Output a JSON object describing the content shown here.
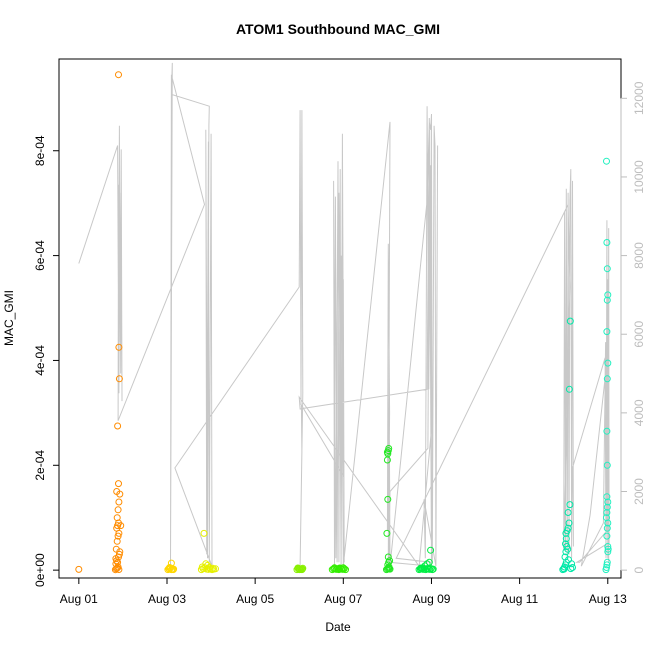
{
  "chart_data": {
    "type": "scatter",
    "title": "ATOM1 Southbound MAC_GMI",
    "xlabel": "Date",
    "ylabel": "MAC_GMI",
    "x_ticks": [
      "Aug 01",
      "Aug 03",
      "Aug 05",
      "Aug 07",
      "Aug 09",
      "Aug 11",
      "Aug 13"
    ],
    "x_tick_days": [
      1,
      3,
      5,
      7,
      9,
      11,
      13
    ],
    "xlim_days": [
      0.55,
      13.3
    ],
    "y_left": {
      "ticks": [
        "0e+00",
        "2e-04",
        "4e-04",
        "6e-04",
        "8e-04"
      ],
      "tick_values": [
        0,
        0.0002,
        0.0004,
        0.0006,
        0.0008
      ],
      "lim": [
        -1.5e-05,
        0.000975
      ]
    },
    "y_right": {
      "ticks": [
        "0",
        "2000",
        "4000",
        "6000",
        "8000",
        "10000",
        "12000"
      ],
      "tick_values": [
        0,
        2000,
        4000,
        6000,
        8000,
        10000,
        12000
      ],
      "lim": [
        -200,
        13000
      ],
      "color": "#bdbdbd"
    },
    "grid": false,
    "legend": "none",
    "series": [
      {
        "color": "#FF8C00",
        "points": [
          [
            1.0,
            1.5e-06
          ],
          [
            1.83,
            8e-07
          ],
          [
            1.85,
            2.5e-06
          ],
          [
            1.87,
            4e-06
          ],
          [
            1.89,
            6e-06
          ],
          [
            1.91,
            1.2e-06
          ],
          [
            1.84,
            1.2e-05
          ],
          [
            1.86,
            1.8e-05
          ],
          [
            1.88,
            1.5e-05
          ],
          [
            1.9,
            2.5e-05
          ],
          [
            1.92,
            3e-05
          ],
          [
            1.85,
            4e-05
          ],
          [
            1.87,
            5.5e-05
          ],
          [
            1.89,
            6.5e-05
          ],
          [
            1.91,
            7e-05
          ],
          [
            1.86,
            8e-05
          ],
          [
            1.88,
            8.5e-05
          ],
          [
            1.9,
            9e-05
          ],
          [
            1.87,
            0.0001
          ],
          [
            1.89,
            0.000115
          ],
          [
            1.91,
            0.00013
          ],
          [
            1.86,
            0.00015
          ],
          [
            1.93,
            0.000145
          ],
          [
            1.9,
            0.000165
          ],
          [
            1.88,
            0.000275
          ],
          [
            1.92,
            0.000365
          ],
          [
            1.91,
            0.000425
          ],
          [
            1.9,
            0.000945
          ],
          [
            1.95,
            8.5e-05
          ],
          [
            1.93,
            3.5e-05
          ],
          [
            1.84,
            2.2e-05
          ]
        ]
      },
      {
        "color": "#FFD700",
        "points": [
          [
            3.02,
            1e-06
          ],
          [
            3.05,
            2.5e-06
          ],
          [
            3.08,
            4e-06
          ],
          [
            3.1,
            1e-06
          ],
          [
            3.12,
            1.5e-06
          ],
          [
            3.15,
            2e-06
          ],
          [
            3.06,
            5e-06
          ],
          [
            3.1,
            1.35e-05
          ],
          [
            3.04,
            3e-06
          ],
          [
            3.14,
            1e-06
          ]
        ]
      },
      {
        "color": "#E6F000",
        "points": [
          [
            3.78,
            1e-06
          ],
          [
            3.82,
            3e-06
          ],
          [
            3.86,
            4.5e-06
          ],
          [
            3.9,
            2e-06
          ],
          [
            3.94,
            1.5e-06
          ],
          [
            3.98,
            3e-06
          ],
          [
            4.02,
            1e-06
          ],
          [
            4.06,
            2e-06
          ],
          [
            4.1,
            2.5e-06
          ],
          [
            3.8,
            6e-06
          ],
          [
            3.88,
            1.2e-05
          ],
          [
            3.84,
            7e-05
          ],
          [
            4.04,
            3.5e-06
          ],
          [
            3.92,
            9e-06
          ],
          [
            3.96,
            5e-06
          ]
        ]
      },
      {
        "color": "#88F000",
        "points": [
          [
            5.95,
            1e-06
          ],
          [
            5.98,
            2.5e-06
          ],
          [
            6.0,
            3e-06
          ],
          [
            6.02,
            1.5e-06
          ],
          [
            6.04,
            2e-06
          ],
          [
            6.06,
            1e-06
          ],
          [
            6.08,
            3.5e-06
          ],
          [
            5.97,
            4e-06
          ],
          [
            6.01,
            1e-06
          ],
          [
            6.07,
            2e-06
          ]
        ]
      },
      {
        "color": "#33EE00",
        "points": [
          [
            6.75,
            1e-06
          ],
          [
            6.78,
            2.5e-06
          ],
          [
            6.81,
            3e-06
          ],
          [
            6.84,
            1.5e-06
          ],
          [
            6.87,
            2e-06
          ],
          [
            6.9,
            1e-06
          ],
          [
            6.93,
            3e-06
          ],
          [
            6.96,
            2e-06
          ],
          [
            6.99,
            1.5e-06
          ],
          [
            7.02,
            3e-06
          ],
          [
            7.05,
            1e-06
          ],
          [
            6.8,
            4.5e-06
          ],
          [
            6.92,
            4e-06
          ],
          [
            7.0,
            4.5e-06
          ],
          [
            6.88,
            3e-06
          ]
        ]
      },
      {
        "color": "#22E822",
        "points": [
          [
            7.98,
            1e-06
          ],
          [
            8.0,
            2.5e-06
          ],
          [
            8.02,
            4e-06
          ],
          [
            8.04,
            6e-06
          ],
          [
            8.01,
            1e-05
          ],
          [
            8.03,
            1.5e-05
          ],
          [
            8.05,
            1.8e-05
          ],
          [
            8.02,
            2.5e-05
          ],
          [
            7.99,
            7e-05
          ],
          [
            8.01,
            0.000135
          ],
          [
            8.0,
            0.00021
          ],
          [
            8.01,
            0.000222
          ],
          [
            8.02,
            0.000228
          ],
          [
            8.03,
            0.000232
          ],
          [
            8.0,
            0.000225
          ],
          [
            8.04,
            3e-06
          ],
          [
            8.06,
            2e-06
          ]
        ]
      },
      {
        "color": "#00EE44",
        "points": [
          [
            8.72,
            1e-06
          ],
          [
            8.75,
            2e-06
          ],
          [
            8.78,
            3e-06
          ],
          [
            8.81,
            1.5e-06
          ],
          [
            8.84,
            2.5e-06
          ],
          [
            8.87,
            1e-06
          ],
          [
            8.9,
            3e-06
          ],
          [
            8.93,
            2e-06
          ],
          [
            8.96,
            1.5e-06
          ],
          [
            8.99,
            3e-06
          ],
          [
            9.02,
            1e-06
          ],
          [
            8.8,
            4.5e-06
          ],
          [
            8.85,
            8e-06
          ],
          [
            8.9,
            1.2e-05
          ],
          [
            8.95,
            1.5e-05
          ],
          [
            8.98,
            3.8e-05
          ],
          [
            8.76,
            4e-06
          ],
          [
            9.04,
            2e-06
          ]
        ]
      },
      {
        "color": "#00E8A8",
        "points": [
          [
            11.98,
            1e-06
          ],
          [
            12.0,
            3e-06
          ],
          [
            12.02,
            6e-06
          ],
          [
            12.04,
            1e-05
          ],
          [
            12.06,
            1.5e-05
          ],
          [
            12.03,
            2.5e-05
          ],
          [
            12.05,
            3.5e-05
          ],
          [
            12.07,
            4.5e-05
          ],
          [
            12.04,
            5e-05
          ],
          [
            12.06,
            6e-05
          ],
          [
            12.05,
            7e-05
          ],
          [
            12.08,
            7.5e-05
          ],
          [
            12.1,
            8e-05
          ],
          [
            12.12,
            9e-05
          ],
          [
            12.1,
            0.00011
          ],
          [
            12.14,
            0.000125
          ],
          [
            12.13,
            0.000345
          ],
          [
            12.15,
            0.000475
          ],
          [
            12.2,
            5e-06
          ],
          [
            12.16,
            3e-06
          ],
          [
            12.18,
            1.2e-05
          ],
          [
            12.01,
            2e-06
          ],
          [
            12.09,
            4e-05
          ],
          [
            12.11,
            2e-05
          ]
        ]
      },
      {
        "color": "#22F0C0",
        "points": [
          [
            12.96,
            1e-06
          ],
          [
            12.97,
            5e-06
          ],
          [
            12.98,
            1e-05
          ],
          [
            12.99,
            1.5e-05
          ],
          [
            13.0,
            3.5e-05
          ],
          [
            12.98,
            6.5e-05
          ],
          [
            12.99,
            8e-05
          ],
          [
            13.0,
            9e-05
          ],
          [
            12.97,
            0.0001
          ],
          [
            12.98,
            0.00011
          ],
          [
            12.99,
            0.00012
          ],
          [
            13.0,
            0.00013
          ],
          [
            12.98,
            0.00014
          ],
          [
            12.99,
            0.0002
          ],
          [
            12.98,
            0.000265
          ],
          [
            12.99,
            0.000365
          ],
          [
            13.0,
            0.000395
          ],
          [
            12.98,
            0.000455
          ],
          [
            12.99,
            0.000515
          ],
          [
            13.0,
            0.000525
          ],
          [
            12.99,
            0.000575
          ],
          [
            12.98,
            0.000625
          ],
          [
            13.01,
            4e-05
          ],
          [
            13.0,
            4.5e-05
          ],
          [
            12.97,
            0.00078
          ]
        ]
      }
    ],
    "line_series": {
      "axis": "right",
      "color": "#c8c8c8",
      "points": [
        [
          1.0,
          7800
        ],
        [
          1.88,
          10800
        ],
        [
          1.9,
          6200
        ],
        [
          1.92,
          11300
        ],
        [
          1.94,
          5800
        ],
        [
          1.96,
          10000
        ],
        [
          1.98,
          4300
        ],
        [
          1.96,
          10700
        ],
        [
          1.95,
          5000
        ],
        [
          1.93,
          9600
        ],
        [
          1.91,
          4500
        ],
        [
          1.9,
          9800
        ],
        [
          1.89,
          3800
        ],
        [
          3.85,
          9300
        ],
        [
          3.1,
          12600
        ],
        [
          3.08,
          100
        ],
        [
          3.12,
          12900
        ],
        [
          3.1,
          12100
        ],
        [
          3.96,
          11800
        ],
        [
          3.95,
          11300
        ],
        [
          3.92,
          300
        ],
        [
          3.88,
          11200
        ],
        [
          3.9,
          400
        ],
        [
          3.94,
          10900
        ],
        [
          3.96,
          200
        ],
        [
          4.0,
          11100
        ],
        [
          4.02,
          100
        ],
        [
          3.18,
          2600
        ],
        [
          6.0,
          7200
        ],
        [
          6.02,
          11700
        ],
        [
          6.04,
          4200
        ],
        [
          6.06,
          11700
        ],
        [
          6.08,
          4500
        ],
        [
          6.02,
          100
        ],
        [
          6.06,
          3000
        ],
        [
          6.05,
          4200
        ],
        [
          7.0,
          2400
        ],
        [
          6.98,
          7700
        ],
        [
          6.95,
          100
        ],
        [
          6.9,
          9600
        ],
        [
          6.86,
          200
        ],
        [
          6.82,
          9500
        ],
        [
          6.8,
          100
        ],
        [
          6.78,
          9900
        ],
        [
          6.83,
          300
        ],
        [
          6.88,
          10400
        ],
        [
          6.9,
          200
        ],
        [
          6.93,
          10200
        ],
        [
          6.95,
          300
        ],
        [
          6.98,
          11100
        ],
        [
          7.02,
          200
        ],
        [
          7.0,
          7400
        ],
        [
          6.97,
          4200
        ],
        [
          6.95,
          8000
        ],
        [
          7.0,
          100
        ],
        [
          8.06,
          11400
        ],
        [
          8.02,
          300
        ],
        [
          8.05,
          4000
        ],
        [
          8.02,
          8300
        ],
        [
          8.0,
          1000
        ],
        [
          8.04,
          4800
        ],
        [
          8.06,
          100
        ],
        [
          8.9,
          9400
        ],
        [
          8.95,
          11400
        ],
        [
          8.98,
          11200
        ],
        [
          9.0,
          11600
        ],
        [
          9.02,
          200
        ],
        [
          9.06,
          11300
        ],
        [
          9.08,
          10800
        ],
        [
          9.1,
          200
        ],
        [
          9.14,
          10800
        ],
        [
          9.1,
          100
        ],
        [
          8.83,
          1800
        ],
        [
          8.86,
          300
        ],
        [
          8.9,
          11800
        ],
        [
          8.94,
          4600
        ],
        [
          8.98,
          10300
        ],
        [
          9.0,
          3600
        ],
        [
          8.72,
          100
        ],
        [
          6.0,
          4400
        ],
        [
          6.02,
          4100
        ],
        [
          8.9,
          4600
        ],
        [
          8.95,
          11500
        ],
        [
          9.0,
          100
        ],
        [
          8.04,
          200
        ],
        [
          8.06,
          2000
        ],
        [
          8.92,
          3100
        ],
        [
          8.96,
          11200
        ],
        [
          9.0,
          200
        ],
        [
          8.2,
          300
        ],
        [
          12.1,
          9300
        ],
        [
          12.14,
          7200
        ],
        [
          12.0,
          500
        ],
        [
          12.02,
          9100
        ],
        [
          12.04,
          500
        ],
        [
          12.06,
          9700
        ],
        [
          12.08,
          300
        ],
        [
          12.1,
          9600
        ],
        [
          12.12,
          400
        ],
        [
          12.14,
          9400
        ],
        [
          12.16,
          10200
        ],
        [
          12.18,
          300
        ],
        [
          12.2,
          9900
        ],
        [
          12.22,
          600
        ],
        [
          12.2,
          2600
        ],
        [
          12.94,
          5400
        ],
        [
          12.96,
          300
        ],
        [
          12.98,
          8900
        ],
        [
          13.0,
          300
        ],
        [
          13.02,
          8700
        ],
        [
          13.03,
          700
        ],
        [
          12.3,
          200
        ],
        [
          12.36,
          200
        ],
        [
          12.98,
          1000
        ],
        [
          13.0,
          7400
        ],
        [
          13.02,
          200
        ],
        [
          13.0,
          800
        ],
        [
          12.95,
          5800
        ],
        [
          12.9,
          1200
        ],
        [
          12.4,
          100
        ],
        [
          12.6,
          1400
        ],
        [
          12.99,
          5400
        ],
        [
          13.01,
          300
        ]
      ]
    }
  }
}
